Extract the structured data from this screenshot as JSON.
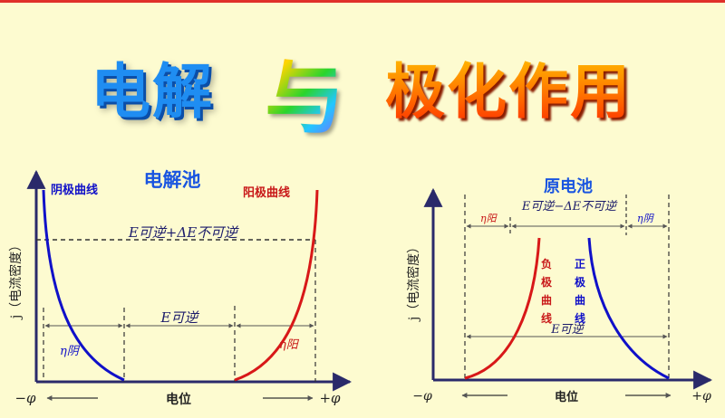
{
  "title": {
    "left": "电解",
    "middle": "与",
    "right": "极化作用"
  },
  "left_chart": {
    "title": "电解池",
    "cathode_label": "阴极曲线",
    "anode_label": "阳极曲线",
    "ylabel": "j（电流密度）",
    "xlabel": "电位",
    "x_neg": "−φ",
    "x_pos": "+φ",
    "e_rev_label": "E可逆",
    "e_total_label": "E可逆+ΔE不可逆",
    "eta_cathode": "η阴",
    "eta_anode": "η阳"
  },
  "right_chart": {
    "title": "原电池",
    "neg_curve_label": [
      "负",
      "极",
      "曲",
      "线"
    ],
    "pos_curve_label": [
      "正",
      "极",
      "曲",
      "线"
    ],
    "ylabel": "j（电流密度）",
    "xlabel": "电位",
    "x_neg": "−φ",
    "x_pos": "+φ",
    "e_rev_label": "E可逆",
    "e_diff_label": "E可逆−ΔE不可逆",
    "eta_left": "η阳",
    "eta_right": "η阴"
  },
  "colors": {
    "background": "#fdfbd0",
    "cathode_curve": "#1010c8",
    "anode_curve": "#d81818",
    "chart_title": "#1a55e0",
    "axis": "#2a2a6a"
  }
}
